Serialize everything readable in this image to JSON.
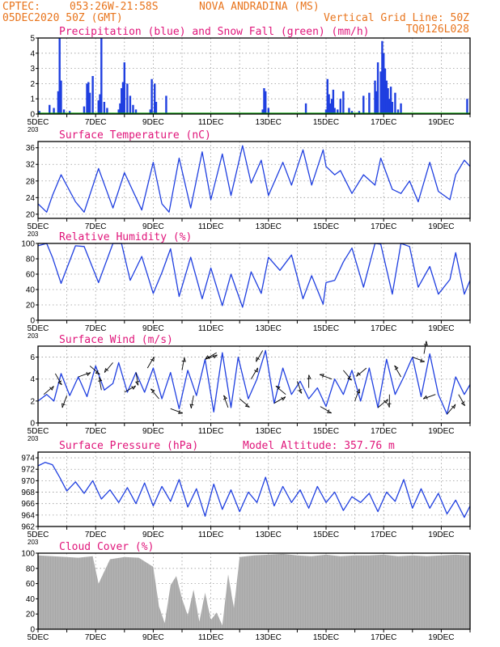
{
  "header": {
    "line1_left": "CPTEC:",
    "line1_coords": "053:26W-21:58S",
    "line1_city": "NOVA ANDRADINA (MS)",
    "line2_left": "05DEC2020 50Z (GMT)",
    "line2_right": "Vertical Grid Line: 50Z",
    "line3_right": "TQ0126L028"
  },
  "colors": {
    "header": "#e8741c",
    "title": "#e0157a",
    "line": "#1f3fe0",
    "snow": "#00a000",
    "cloud": "#a8a8a8"
  },
  "x_axis": {
    "days": [
      5,
      6,
      7,
      8,
      9,
      10,
      11,
      12,
      13,
      14,
      15,
      16,
      17,
      18,
      19,
      20
    ],
    "labels": [
      "5DEC",
      "7DEC",
      "9DEC",
      "11DEC",
      "13DEC",
      "15DEC",
      "17DEC",
      "19DEC"
    ],
    "label_days": [
      5,
      7,
      9,
      11,
      13,
      15,
      17,
      19
    ],
    "stub_label": "203"
  },
  "chart_data": [
    {
      "type": "bar",
      "title": "Precipitation (blue) and Snow Fall (green) (mm/h)",
      "ylim": [
        0,
        5
      ],
      "yticks": [
        0,
        1,
        2,
        3,
        4,
        5
      ],
      "series": [
        {
          "name": "Precipitation",
          "x": [
            5.05,
            5.4,
            5.55,
            5.7,
            5.75,
            5.8,
            5.9,
            6.1,
            6.6,
            6.7,
            6.75,
            6.8,
            6.9,
            7.1,
            7.15,
            7.2,
            7.3,
            7.4,
            7.8,
            7.85,
            7.9,
            7.95,
            8.0,
            8.1,
            8.2,
            8.3,
            8.4,
            8.9,
            8.95,
            9.05,
            9.1,
            9.45,
            12.8,
            12.85,
            12.9,
            13.0,
            14.3,
            15.0,
            15.05,
            15.1,
            15.15,
            15.2,
            15.25,
            15.3,
            15.4,
            15.5,
            15.6,
            15.8,
            15.9,
            16.15,
            16.3,
            16.5,
            16.7,
            16.75,
            16.8,
            16.9,
            16.95,
            17.0,
            17.05,
            17.1,
            17.15,
            17.2,
            17.25,
            17.3,
            17.4,
            17.5,
            17.6,
            19.9
          ],
          "values": [
            0.2,
            0.6,
            0.4,
            1.5,
            5.0,
            2.2,
            0.3,
            0.2,
            0.5,
            2.0,
            2.1,
            1.4,
            2.5,
            0.9,
            1.3,
            5.0,
            0.8,
            0.4,
            0.3,
            0.7,
            1.7,
            2.1,
            3.4,
            2.0,
            1.2,
            0.6,
            0.3,
            0.3,
            2.3,
            2.0,
            0.8,
            1.2,
            0.3,
            1.7,
            1.5,
            0.4,
            0.7,
            0.3,
            2.3,
            1.3,
            0.7,
            1.0,
            1.6,
            0.4,
            0.3,
            1.0,
            1.5,
            0.4,
            0.2,
            0.2,
            1.2,
            1.4,
            2.2,
            1.5,
            3.4,
            2.8,
            4.8,
            4.0,
            3.0,
            2.2,
            1.7,
            1.0,
            1.8,
            0.8,
            1.4,
            0.3,
            0.7,
            1.0
          ]
        },
        {
          "name": "Snow Fall",
          "x": [
            5,
            20
          ],
          "values": [
            0,
            0
          ]
        }
      ]
    },
    {
      "type": "line",
      "title": "Surface Temperature (nC)",
      "ylim": [
        19,
        37.5
      ],
      "yticks": [
        20,
        24,
        28,
        32,
        36
      ],
      "series": [
        {
          "name": "Temperature",
          "x": [
            5.0,
            5.3,
            5.5,
            5.8,
            6.3,
            6.6,
            7.1,
            7.6,
            8.0,
            8.2,
            8.6,
            9.0,
            9.3,
            9.55,
            9.9,
            10.3,
            10.7,
            11.0,
            11.4,
            11.7,
            12.1,
            12.4,
            12.75,
            13.0,
            13.5,
            13.8,
            14.2,
            14.5,
            14.9,
            15.0,
            15.3,
            15.5,
            15.9,
            16.3,
            16.7,
            16.9,
            17.3,
            17.6,
            17.9,
            18.2,
            18.6,
            18.9,
            19.3,
            19.5,
            19.8,
            20.0
          ],
          "values": [
            22.5,
            20.5,
            24.5,
            29.5,
            23.0,
            20.5,
            31.0,
            21.5,
            30.0,
            27.0,
            21.0,
            32.5,
            22.5,
            20.5,
            33.5,
            21.5,
            35.0,
            23.5,
            34.5,
            24.5,
            36.5,
            27.5,
            33.0,
            24.5,
            32.5,
            27.0,
            35.5,
            27.0,
            35.5,
            31.5,
            29.5,
            30.5,
            25.0,
            29.5,
            27.0,
            33.5,
            26.0,
            25.0,
            28.0,
            23.0,
            32.5,
            25.5,
            23.5,
            29.5,
            33.0,
            31.5
          ]
        }
      ]
    },
    {
      "type": "line",
      "title": "Relative Humidity (%)",
      "ylim": [
        0,
        100
      ],
      "yticks": [
        0,
        20,
        40,
        60,
        80,
        100
      ],
      "series": [
        {
          "name": "Humidity",
          "x": [
            5.0,
            5.3,
            5.5,
            5.8,
            6.3,
            6.6,
            7.1,
            7.6,
            7.9,
            8.2,
            8.6,
            9.0,
            9.3,
            9.6,
            9.9,
            10.3,
            10.7,
            11.0,
            11.4,
            11.7,
            12.1,
            12.4,
            12.75,
            13.0,
            13.4,
            13.8,
            14.2,
            14.5,
            14.9,
            15.0,
            15.3,
            15.6,
            15.9,
            16.3,
            16.7,
            16.9,
            17.3,
            17.6,
            17.9,
            18.2,
            18.6,
            18.9,
            19.3,
            19.5,
            19.8,
            20.0
          ],
          "values": [
            97,
            100,
            82,
            48,
            97,
            96,
            49,
            100,
            100,
            52,
            83,
            35,
            62,
            93,
            31,
            82,
            28,
            68,
            19,
            60,
            17,
            63,
            35,
            82,
            65,
            85,
            28,
            58,
            21,
            49,
            52,
            76,
            94,
            43,
            100,
            99,
            34,
            100,
            96,
            43,
            70,
            34,
            53,
            88,
            34,
            52
          ]
        }
      ]
    },
    {
      "type": "line",
      "title": "Surface Wind (m/s)",
      "ylim": [
        0,
        7
      ],
      "yticks": [
        0,
        2,
        4,
        6
      ],
      "series": [
        {
          "name": "Wind speed",
          "x": [
            5.0,
            5.3,
            5.55,
            5.8,
            6.1,
            6.4,
            6.7,
            7.0,
            7.3,
            7.6,
            7.8,
            8.1,
            8.4,
            8.7,
            9.0,
            9.3,
            9.6,
            9.9,
            10.2,
            10.5,
            10.8,
            11.1,
            11.4,
            11.7,
            11.95,
            12.3,
            12.6,
            12.9,
            13.2,
            13.5,
            13.8,
            14.1,
            14.4,
            14.7,
            15.0,
            15.3,
            15.6,
            15.9,
            16.2,
            16.5,
            16.8,
            17.1,
            17.4,
            17.7,
            18.0,
            18.3,
            18.6,
            18.9,
            19.2,
            19.5,
            19.8,
            20.0
          ],
          "values": [
            2.0,
            2.6,
            2.0,
            4.5,
            2.5,
            4.2,
            2.4,
            5.2,
            3.0,
            3.6,
            5.5,
            2.8,
            4.6,
            2.8,
            5.0,
            2.2,
            4.6,
            1.3,
            4.8,
            2.5,
            5.8,
            1.0,
            6.4,
            1.4,
            6.0,
            2.2,
            4.0,
            6.6,
            1.8,
            5.0,
            2.6,
            3.8,
            2.2,
            3.2,
            1.5,
            4.0,
            2.6,
            4.8,
            2.0,
            5.0,
            1.4,
            5.8,
            2.6,
            4.2,
            6.0,
            2.4,
            6.3,
            2.6,
            0.8,
            4.2,
            2.6,
            3.5
          ]
        }
      ]
    },
    {
      "type": "line",
      "title": "Surface Pressure (hPa)",
      "subtitle": "Model Altitude: 357.76 m",
      "ylim": [
        962,
        975
      ],
      "yticks": [
        962,
        964,
        966,
        968,
        970,
        972,
        974
      ],
      "series": [
        {
          "name": "Pressure",
          "x": [
            5.0,
            5.25,
            5.5,
            5.75,
            6.0,
            6.3,
            6.6,
            6.9,
            7.2,
            7.5,
            7.8,
            8.1,
            8.4,
            8.7,
            9.0,
            9.3,
            9.6,
            9.9,
            10.2,
            10.5,
            10.8,
            11.1,
            11.4,
            11.7,
            12.0,
            12.3,
            12.6,
            12.9,
            13.2,
            13.5,
            13.8,
            14.1,
            14.4,
            14.7,
            15.0,
            15.3,
            15.6,
            15.9,
            16.2,
            16.5,
            16.8,
            17.1,
            17.4,
            17.7,
            18.0,
            18.3,
            18.6,
            18.9,
            19.2,
            19.5,
            19.8,
            20.0
          ],
          "values": [
            972.6,
            973.2,
            972.8,
            970.6,
            968.2,
            969.8,
            967.8,
            970.0,
            966.8,
            968.4,
            966.2,
            968.8,
            966.0,
            969.6,
            965.6,
            969.0,
            966.4,
            970.2,
            965.4,
            968.6,
            963.8,
            969.4,
            965.0,
            968.4,
            964.6,
            968.0,
            966.2,
            970.6,
            965.6,
            969.0,
            966.2,
            968.4,
            965.2,
            969.0,
            966.2,
            968.0,
            964.8,
            967.2,
            966.2,
            967.8,
            964.6,
            968.0,
            966.4,
            970.2,
            965.2,
            968.6,
            965.2,
            967.8,
            964.2,
            966.6,
            963.6,
            965.6
          ]
        }
      ]
    },
    {
      "type": "area",
      "title": "Cloud Cover (%)",
      "ylim": [
        0,
        100
      ],
      "yticks": [
        0,
        20,
        40,
        60,
        80,
        100
      ],
      "series": [
        {
          "name": "Cloud Cover",
          "x": [
            5.0,
            5.5,
            6.0,
            6.4,
            6.9,
            7.1,
            7.5,
            8.0,
            8.5,
            9.0,
            9.2,
            9.4,
            9.6,
            9.8,
            10.0,
            10.2,
            10.4,
            10.6,
            10.8,
            11.0,
            11.2,
            11.4,
            11.6,
            11.8,
            12.0,
            12.5,
            13.0,
            13.5,
            14.0,
            14.5,
            15.0,
            15.5,
            16.0,
            16.5,
            17.0,
            17.5,
            18.0,
            18.5,
            19.0,
            19.5,
            20.0
          ],
          "values": [
            97,
            96,
            95,
            94,
            96,
            60,
            92,
            95,
            94,
            82,
            30,
            8,
            58,
            70,
            40,
            18,
            52,
            10,
            48,
            12,
            22,
            5,
            72,
            28,
            95,
            97,
            98,
            99,
            97,
            96,
            98,
            96,
            97,
            97,
            98,
            96,
            97,
            96,
            97,
            98,
            97
          ]
        }
      ]
    }
  ]
}
